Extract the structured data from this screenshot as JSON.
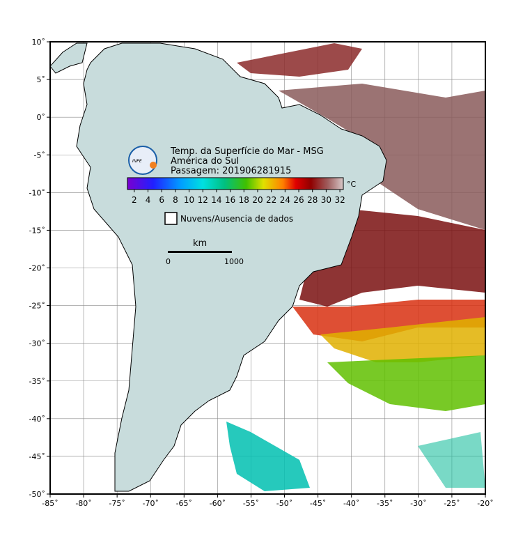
{
  "map": {
    "title": "Temp. da Superfície do Mar - MSG",
    "region": "América do Sul",
    "pass": "Passagem: 201906281915",
    "logo": "INPE",
    "colorbar": {
      "unit": "°C",
      "range": [
        1,
        32.5
      ],
      "ticks": [
        2,
        4,
        6,
        8,
        10,
        12,
        14,
        16,
        18,
        20,
        22,
        24,
        26,
        28,
        30,
        32
      ]
    },
    "legend": "Nuvens/Ausencia de dados",
    "scale_bar": {
      "unit": "km",
      "start": "0",
      "end": "1000"
    },
    "lonlim": [
      -85,
      -20
    ],
    "latlim": [
      -50,
      10
    ],
    "lon_ticks": [
      {
        "value": -85,
        "label": "-85˚"
      },
      {
        "value": -80,
        "label": "-80˚"
      },
      {
        "value": -75,
        "label": "-75˚"
      },
      {
        "value": -70,
        "label": "-70˚"
      },
      {
        "value": -65,
        "label": "-65˚"
      },
      {
        "value": -60,
        "label": "-60˚"
      },
      {
        "value": -55,
        "label": "-55˚"
      },
      {
        "value": -50,
        "label": "-50˚"
      },
      {
        "value": -45,
        "label": "-45˚"
      },
      {
        "value": -40,
        "label": "-40˚"
      },
      {
        "value": -35,
        "label": "-35˚"
      },
      {
        "value": -30,
        "label": "-30˚"
      },
      {
        "value": -25,
        "label": "-25˚"
      },
      {
        "value": -20,
        "label": "-20˚"
      }
    ],
    "lat_ticks": [
      {
        "value": 10,
        "label": "10˚"
      },
      {
        "value": 5,
        "label": "5˚"
      },
      {
        "value": 0,
        "label": "0˚"
      },
      {
        "value": -5,
        "label": "-5˚"
      },
      {
        "value": -10,
        "label": "-10˚"
      },
      {
        "value": -15,
        "label": "-15˚"
      },
      {
        "value": -20,
        "label": "-20˚"
      },
      {
        "value": -25,
        "label": "-25˚"
      },
      {
        "value": -30,
        "label": "-30˚"
      },
      {
        "value": -35,
        "label": "-35˚"
      },
      {
        "value": -40,
        "label": "-40˚"
      },
      {
        "value": -45,
        "label": "-45˚"
      },
      {
        "value": -50,
        "label": "-50˚"
      }
    ]
  }
}
